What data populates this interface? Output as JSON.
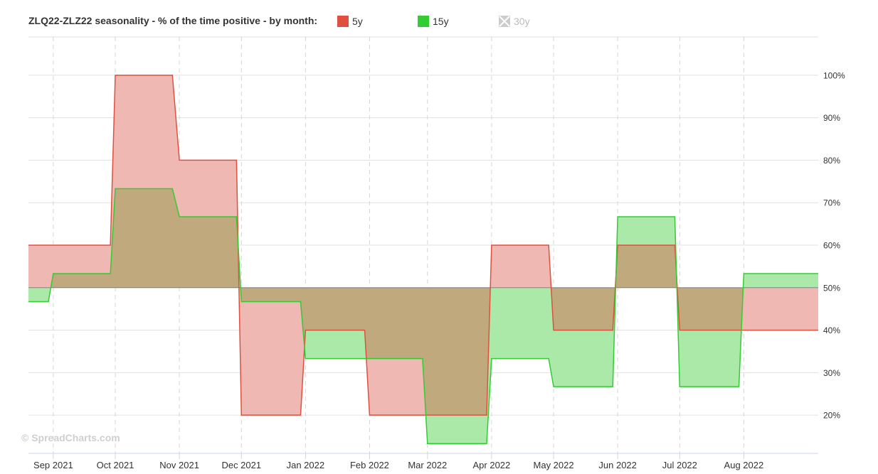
{
  "legend": {
    "title": "ZLQ22-ZLZ22 seasonality - % of the time positive - by month:",
    "items": [
      {
        "label": "5y",
        "color": "#e05040",
        "enabled": true
      },
      {
        "label": "15y",
        "color": "#33cc33",
        "enabled": true
      },
      {
        "label": "30y",
        "color": "#cccccc",
        "enabled": false
      }
    ]
  },
  "credit": "© SpreadCharts.com",
  "chart_data": {
    "type": "area",
    "title": "ZLQ22-ZLZ22 seasonality - % of the time positive - by month:",
    "xlabel": "",
    "ylabel": "",
    "baseline": 50,
    "ylim": [
      11,
      109
    ],
    "y_ticks": [
      "20%",
      "30%",
      "40%",
      "50%",
      "60%",
      "70%",
      "80%",
      "90%",
      "100%"
    ],
    "x_ticks": [
      "Sep 2021",
      "Oct 2021",
      "Nov 2021",
      "Dec 2021",
      "Jan 2022",
      "Feb 2022",
      "Mar 2022",
      "Apr 2022",
      "May 2022",
      "Jun 2022",
      "Jul 2022",
      "Aug 2022"
    ],
    "x_range": [
      "2021-08-20",
      "2022-09-06"
    ],
    "grid": true,
    "legend_position": "top-left",
    "series": [
      {
        "name": "5y",
        "color": "#e05040",
        "fill": "#f0b8b3",
        "steps": [
          {
            "from": "2021-08-20",
            "to": "2021-09-30",
            "value": 60
          },
          {
            "from": "2021-10-01",
            "to": "2021-10-30",
            "value": 100
          },
          {
            "from": "2021-11-01",
            "to": "2021-11-30",
            "value": 80
          },
          {
            "from": "2021-12-01",
            "to": "2021-12-31",
            "value": 20
          },
          {
            "from": "2022-01-01",
            "to": "2022-01-31",
            "value": 40
          },
          {
            "from": "2022-02-01",
            "to": "2022-03-31",
            "value": 20
          },
          {
            "from": "2022-04-01",
            "to": "2022-04-30",
            "value": 60
          },
          {
            "from": "2022-05-01",
            "to": "2022-05-31",
            "value": 40
          },
          {
            "from": "2022-06-01",
            "to": "2022-06-30",
            "value": 60
          },
          {
            "from": "2022-07-01",
            "to": "2022-09-06",
            "value": 40
          }
        ]
      },
      {
        "name": "15y",
        "color": "#33cc33",
        "fill": "#aae9a8",
        "steps": [
          {
            "from": "2021-08-20",
            "to": "2021-08-31",
            "value": 46.7
          },
          {
            "from": "2021-09-01",
            "to": "2021-09-30",
            "value": 53.3
          },
          {
            "from": "2021-10-01",
            "to": "2021-10-30",
            "value": 73.3
          },
          {
            "from": "2021-11-01",
            "to": "2021-11-30",
            "value": 66.7
          },
          {
            "from": "2021-12-01",
            "to": "2021-12-31",
            "value": 46.7
          },
          {
            "from": "2022-01-01",
            "to": "2022-02-28",
            "value": 33.3
          },
          {
            "from": "2022-03-01",
            "to": "2022-03-31",
            "value": 13.3
          },
          {
            "from": "2022-04-01",
            "to": "2022-04-30",
            "value": 33.3
          },
          {
            "from": "2022-05-01",
            "to": "2022-05-31",
            "value": 26.7
          },
          {
            "from": "2022-06-01",
            "to": "2022-06-30",
            "value": 66.7
          },
          {
            "from": "2022-07-01",
            "to": "2022-07-31",
            "value": 26.7
          },
          {
            "from": "2022-08-01",
            "to": "2022-09-06",
            "value": 53.3
          }
        ]
      }
    ],
    "overlap_fill": "#bfa97d"
  }
}
